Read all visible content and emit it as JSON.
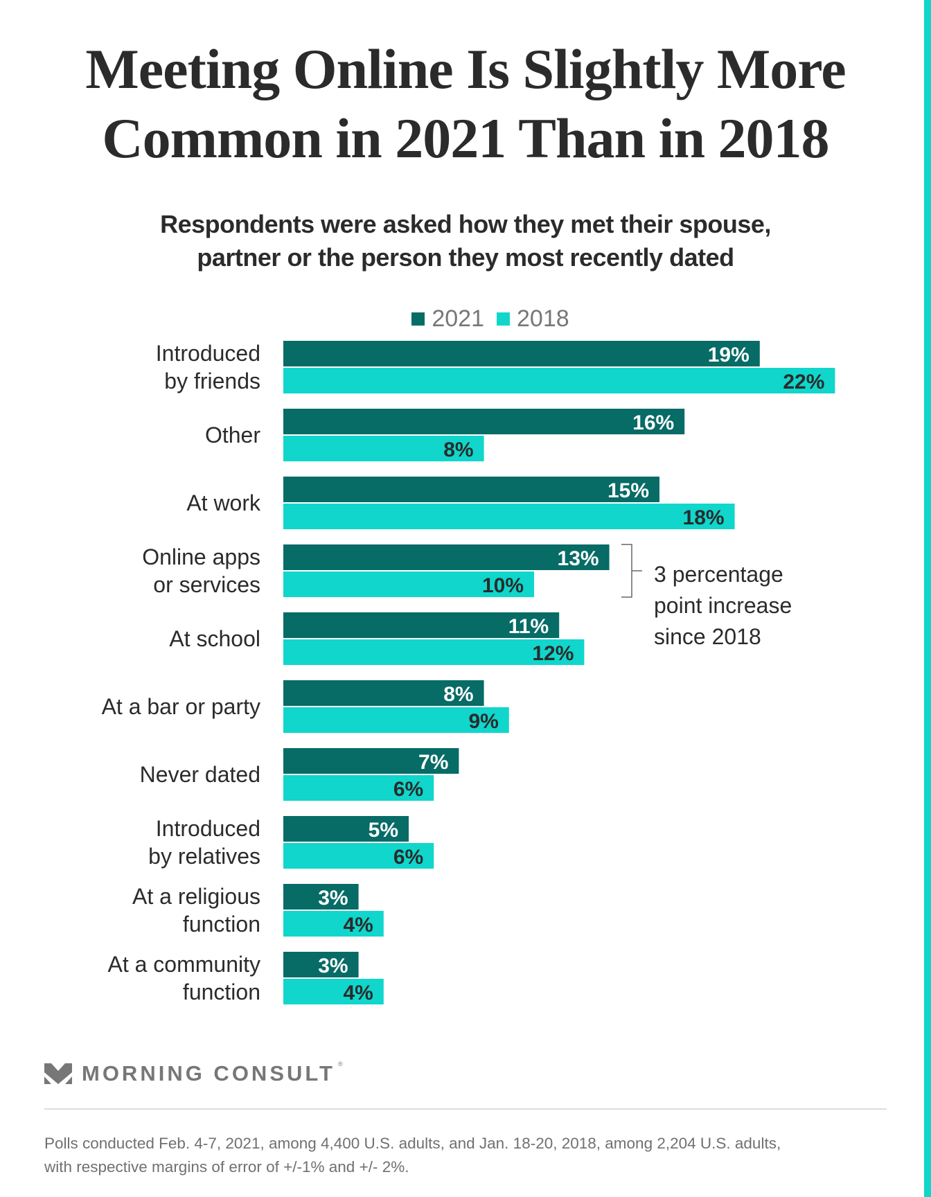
{
  "header": {
    "title_line1": "Meeting Online Is Slightly More",
    "title_line2": "Common in 2021 Than in 2018",
    "subtitle_line1": "Respondents were asked how they met their spouse,",
    "subtitle_line2": "partner or the person they most recently dated"
  },
  "colors": {
    "series_2021": "#076b66",
    "series_2018": "#10d6cc",
    "accent": "#10d6cc",
    "text_dark": "#2b2b2b",
    "text_gray": "#777777"
  },
  "chart_data": {
    "type": "bar",
    "orientation": "horizontal",
    "title": "Meeting Online Is Slightly More Common in 2021 Than in 2018",
    "subtitle": "Respondents were asked how they met their spouse, partner or the person they most recently dated",
    "xlabel": "",
    "ylabel": "",
    "unit": "%",
    "legend_position": "top-center",
    "grid": false,
    "xlim": [
      0,
      22
    ],
    "categories": [
      [
        "Introduced",
        "by friends"
      ],
      [
        "Other"
      ],
      [
        "At work"
      ],
      [
        "Online apps",
        "or services"
      ],
      [
        "At school"
      ],
      [
        "At a bar or party"
      ],
      [
        "Never dated"
      ],
      [
        "Introduced",
        "by relatives"
      ],
      [
        "At a religious",
        "function"
      ],
      [
        "At a community",
        "function"
      ]
    ],
    "series": [
      {
        "name": "2021",
        "values": [
          19,
          16,
          15,
          13,
          11,
          8,
          7,
          5,
          3,
          3
        ],
        "labels": [
          "19%",
          "16%",
          "15%",
          "13%",
          "11%",
          "8%",
          "7%",
          "5%",
          "3%",
          "3%"
        ]
      },
      {
        "name": "2018",
        "values": [
          22,
          8,
          18,
          10,
          12,
          9,
          6,
          6,
          4,
          4
        ],
        "labels": [
          "22%",
          "8%",
          "18%",
          "10%",
          "12%",
          "9%",
          "6%",
          "6%",
          "4%",
          "4%"
        ]
      }
    ],
    "annotation": {
      "category_index": 3,
      "lines": [
        "3 percentage",
        "point increase",
        "since 2018"
      ]
    }
  },
  "legend": [
    {
      "label": "2021"
    },
    {
      "label": "2018"
    }
  ],
  "footer": {
    "logo_text": "MORNING CONSULT",
    "logo_reg": "®",
    "note_line1": "Polls conducted Feb. 4-7, 2021, among 4,400 U.S. adults, and Jan. 18-20, 2018, among 2,204 U.S. adults,",
    "note_line2": "with respective margins of error of +/-1% and +/- 2%."
  }
}
